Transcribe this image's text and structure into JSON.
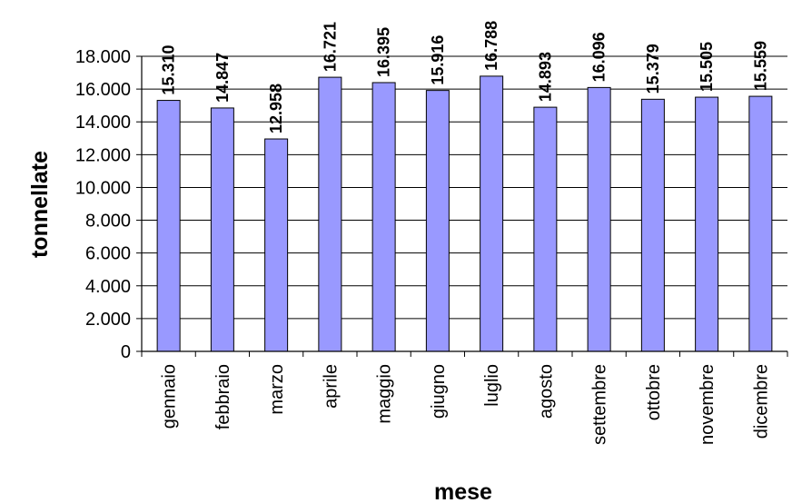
{
  "chart_data": {
    "type": "bar",
    "title": "",
    "xlabel": "mese",
    "ylabel": "tonnellate",
    "categories": [
      "gennaio",
      "febbraio",
      "marzo",
      "aprile",
      "maggio",
      "giugno",
      "luglio",
      "agosto",
      "settembre",
      "ottobre",
      "novembre",
      "dicembre"
    ],
    "values": [
      15310,
      14847,
      12958,
      16721,
      16395,
      15916,
      16788,
      14893,
      16096,
      15379,
      15505,
      15559
    ],
    "value_labels": [
      "15.310",
      "14.847",
      "12.958",
      "16.721",
      "16.395",
      "15.916",
      "16.788",
      "14.893",
      "16.096",
      "15.379",
      "15.505",
      "15.559"
    ],
    "yticks": [
      0,
      2000,
      4000,
      6000,
      8000,
      10000,
      12000,
      14000,
      16000,
      18000
    ],
    "ytick_labels": [
      "0",
      "2.000",
      "4.000",
      "6.000",
      "8.000",
      "10.000",
      "12.000",
      "14.000",
      "16.000",
      "18.000"
    ],
    "ylim": [
      0,
      18000
    ],
    "grid": true,
    "legend": "none",
    "colors": {
      "bar_fill": "#9999ff",
      "bar_stroke": "#000000",
      "grid": "#000000",
      "axis": "#000000"
    }
  }
}
